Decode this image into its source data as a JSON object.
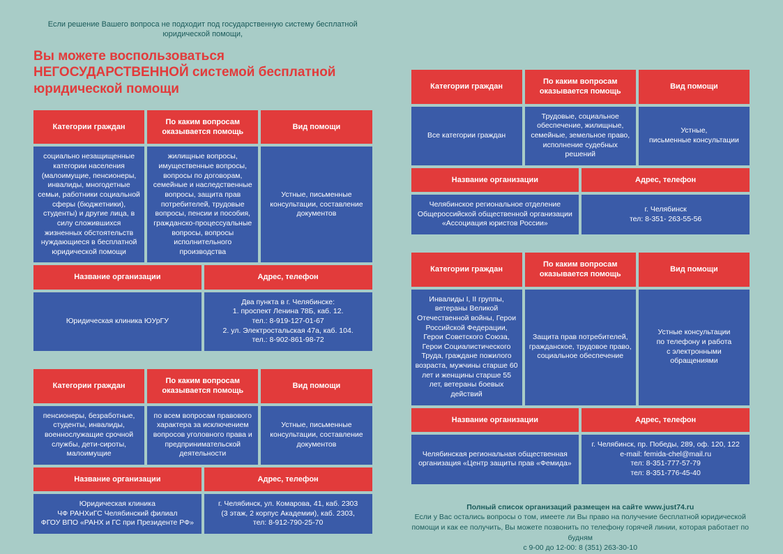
{
  "intro": "Если решение Вашего вопроса не подходит под государственную систему бесплатной юридической помощи,",
  "headline": "Вы можете воспользоваться НЕГОСУДАРСТВЕННОЙ системой бесплатной юридической помощи",
  "headers": {
    "cat": "Категории граждан",
    "topics": "По каким вопросам оказывается помощь",
    "type": "Вид помощи",
    "org": "Название организации",
    "addr": "Адрес, телефон"
  },
  "left": [
    {
      "cat": "социально незащищенные категории населения (малоимущие, пенсионеры, инвалиды, многодетные семьи, работники социальной сферы (бюджетники), студенты) и другие лица, в силу сложившихся жизненных обстоятельств нуждающиеся в бесплатной юридической помощи",
      "topics": "жилищные вопросы, имущественные вопросы, вопросы по договорам, семейные и наследственные вопросы, защита прав потребителей, трудовые вопросы, пенсии и пособия, гражданско-процессуальные вопросы, вопросы исполнительного производства",
      "type": "Устные, письменные консультации, составление документов",
      "org": "Юридическая клиника  ЮУрГУ",
      "addr": "Два пункта в г. Челябинске:\n1. проспект Ленина 78Б, каб. 12.\nтел.: 8-919-127-01-67\n2. ул. Электростальская 47а, каб. 104.\nтел.: 8-902-861-98-72"
    },
    {
      "cat": "пенсионеры, безработные, студенты, инвалиды, военнослужащие срочной службы, дети-сироты, малоимущие",
      "topics": "по всем вопросам правового характера за исключением вопросов уголовного права и предпринимательской деятельности",
      "type": "Устные, письменные консультации, составление документов",
      "org": "Юридическая клиника\nЧФ РАНХиГС Челябинский филиал\nФГОУ ВПО «РАНХ и ГС при Президенте РФ»",
      "addr": "г. Челябинск, ул. Комарова, 41, каб. 2303\n(3 этаж, 2 корпус Академии), каб. 2303,\nтел: 8-912-790-25-70"
    }
  ],
  "right": [
    {
      "cat": "Все категории граждан",
      "topics": "Трудовые, социальное обеспечение, жилищные, семейные, земельное право, исполнение судебных решений",
      "type": "Устные,\nписьменные консультации",
      "org": "Челябинское региональное отделение\nОбщероссийской общественной организации\n«Ассоциация юристов России»",
      "addr": "г. Челябинск\nтел: 8-351- 263-55-56"
    },
    {
      "cat": "Инвалиды I, II группы, ветераны Великой Отечественной войны, Герои Российской Федерации, Герои Советского Союза, Герои Социалистического Труда, граждане пожилого возраста, мужчины старше 60 лет и женщины старше 55 лет, ветераны боевых действий",
      "topics": "Защита прав потребителей, гражданское, трудовое право, социальное обеспечение",
      "type": "Устные консультации\nпо телефону и работа\nс электронными обращениями",
      "org": "Челябинская региональная общественная организация «Центр защиты прав «Фемида»",
      "addr": "г. Челябинск, пр. Победы, 289, оф. 120, 122\ne-mail: femida-chel@mail.ru\nтел: 8-351-777-57-79\nтел: 8-351-776-45-40"
    }
  ],
  "footer": {
    "line1": "Полный список организаций размещен на сайте www.just74.ru",
    "line2": "Если у Вас остались вопросы о том, имеете ли Вы право на получение бесплатной юридической помощи и как ее получить, Вы можете позвонить по телефону горячей линии, которая работает по будням",
    "line3": "с 9-00 до 12-00: 8 (351) 263-30-10"
  },
  "colors": {
    "bg": "#a8ccc7",
    "red": "#e23b3b",
    "blue": "#3a5ba8",
    "teal": "#1a5a5a"
  }
}
